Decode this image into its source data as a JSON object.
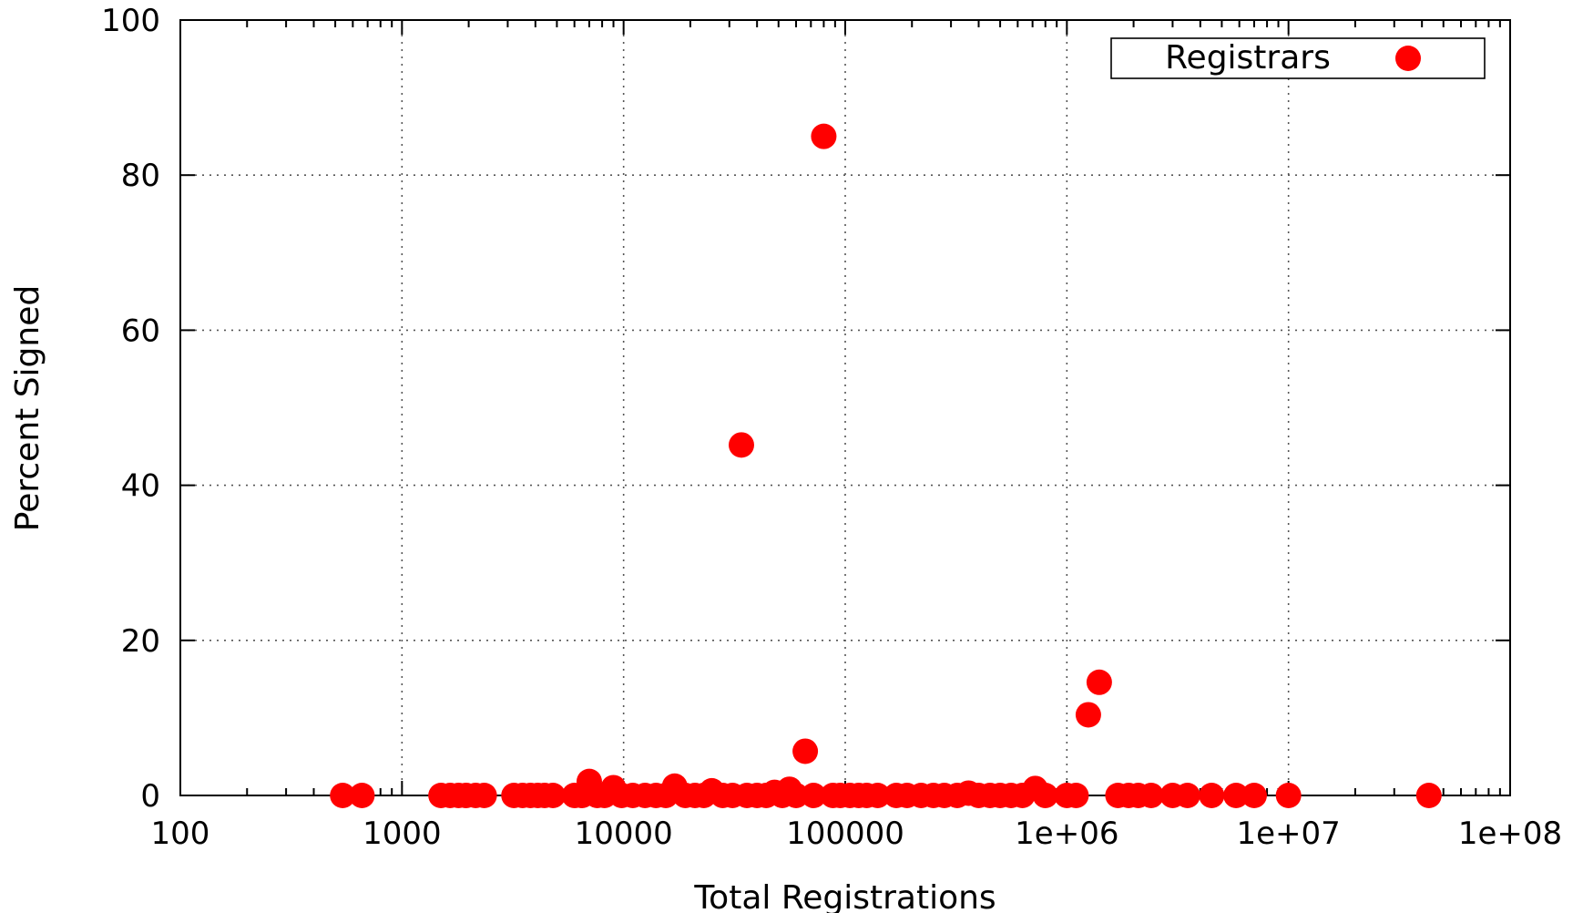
{
  "chart_data": {
    "type": "scatter",
    "xlabel": "Total Registrations",
    "ylabel": "Percent Signed",
    "xscale": "log",
    "xlim": [
      100,
      100000000
    ],
    "ylim": [
      0,
      100
    ],
    "grid": true,
    "legend_position": "top-right",
    "x_ticks": [
      "100",
      "1000",
      "10000",
      "100000",
      "1e+06",
      "1e+07",
      "1e+08"
    ],
    "y_ticks": [
      "0",
      "20",
      "40",
      "60",
      "80",
      "100"
    ],
    "series": [
      {
        "name": "Registrars",
        "color": "#ff0000",
        "marker": "circle",
        "points": [
          [
            540,
            0
          ],
          [
            660,
            0
          ],
          [
            1500,
            0
          ],
          [
            1650,
            0
          ],
          [
            1800,
            0
          ],
          [
            1950,
            0
          ],
          [
            2150,
            0
          ],
          [
            2350,
            0
          ],
          [
            3200,
            0
          ],
          [
            3500,
            0
          ],
          [
            3800,
            0
          ],
          [
            4100,
            0
          ],
          [
            4400,
            0
          ],
          [
            4800,
            0
          ],
          [
            6000,
            0
          ],
          [
            6500,
            0
          ],
          [
            7000,
            1.8
          ],
          [
            7600,
            0
          ],
          [
            8200,
            0
          ],
          [
            9000,
            1.0
          ],
          [
            9800,
            0
          ],
          [
            11000,
            0
          ],
          [
            12500,
            0
          ],
          [
            14000,
            0
          ],
          [
            15500,
            0
          ],
          [
            17000,
            1.2
          ],
          [
            19000,
            0
          ],
          [
            21000,
            0
          ],
          [
            23000,
            0
          ],
          [
            25000,
            0.6
          ],
          [
            28000,
            0
          ],
          [
            31000,
            0
          ],
          [
            34000,
            45.2
          ],
          [
            36000,
            0
          ],
          [
            40000,
            0
          ],
          [
            44000,
            0
          ],
          [
            48000,
            0.4
          ],
          [
            52000,
            0
          ],
          [
            56000,
            0.8
          ],
          [
            60000,
            0
          ],
          [
            66000,
            5.7
          ],
          [
            72000,
            0
          ],
          [
            80000,
            85.0
          ],
          [
            88000,
            0
          ],
          [
            95000,
            0
          ],
          [
            105000,
            0
          ],
          [
            115000,
            0
          ],
          [
            125000,
            0
          ],
          [
            140000,
            0
          ],
          [
            170000,
            0
          ],
          [
            190000,
            0
          ],
          [
            220000,
            0
          ],
          [
            250000,
            0
          ],
          [
            280000,
            0
          ],
          [
            320000,
            0
          ],
          [
            360000,
            0.3
          ],
          [
            400000,
            0
          ],
          [
            450000,
            0
          ],
          [
            500000,
            0
          ],
          [
            560000,
            0
          ],
          [
            630000,
            0
          ],
          [
            720000,
            0.9
          ],
          [
            800000,
            0
          ],
          [
            1000000,
            0
          ],
          [
            1100000,
            0
          ],
          [
            1250000,
            10.4
          ],
          [
            1400000,
            14.6
          ],
          [
            1700000,
            0
          ],
          [
            1900000,
            0
          ],
          [
            2100000,
            0
          ],
          [
            2400000,
            0
          ],
          [
            3000000,
            0
          ],
          [
            3500000,
            0
          ],
          [
            4500000,
            0
          ],
          [
            5800000,
            0
          ],
          [
            7000000,
            0
          ],
          [
            10000000,
            0
          ],
          [
            43000000,
            0
          ]
        ]
      }
    ]
  }
}
